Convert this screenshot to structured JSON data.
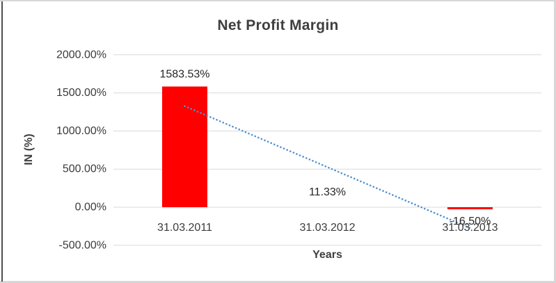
{
  "chart_data": {
    "type": "bar",
    "title": "Net Profit Margin",
    "xlabel": "Years",
    "ylabel": "IN (%)",
    "categories": [
      "31.03.2011",
      "31.03.2012",
      "31.03.2013"
    ],
    "values": [
      1583.53,
      11.33,
      -16.5
    ],
    "data_labels": [
      "1583.53%",
      "11.33%",
      "-16.50%"
    ],
    "y_tick_labels": [
      "2000.00%",
      "1500.00%",
      "1000.00%",
      "500.00%",
      "0.00%",
      "-500.00%"
    ],
    "y_tick_values": [
      2000,
      1500,
      1000,
      500,
      0,
      -500
    ],
    "ylim": [
      -500,
      2000
    ],
    "grid": true,
    "legend_position": "none",
    "trendline": {
      "type": "linear",
      "style": "dotted",
      "start_value": 1326.1,
      "end_value": -273.9
    }
  },
  "colors": {
    "bar": "#ff0000",
    "trendline": "#4f92d1",
    "gridline": "#d9d9d9",
    "title_text": "#3f3f3f",
    "axis_text": "#3b3b3b",
    "label_text": "#262626",
    "frame_border": "#d7d7d7",
    "left_edge": "#4d4d4d",
    "background": "#ffffff"
  }
}
